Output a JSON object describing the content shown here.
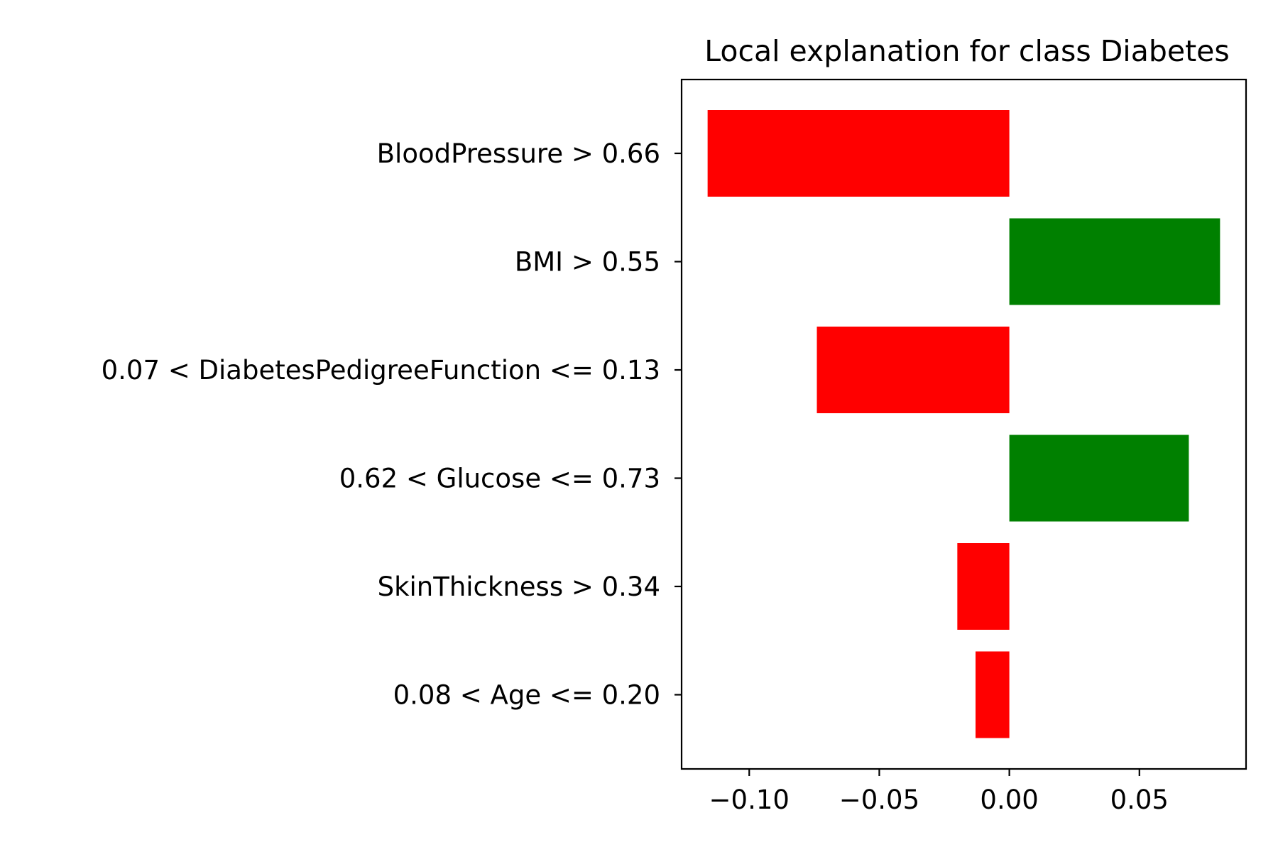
{
  "chart_data": {
    "type": "bar",
    "orientation": "horizontal",
    "title": "Local explanation for class Diabetes",
    "xlabel": "",
    "ylabel": "",
    "categories": [
      "BloodPressure > 0.66",
      "BMI > 0.55",
      "0.07 < DiabetesPedigreeFunction <= 0.13",
      "0.62 < Glucose <= 0.73",
      "SkinThickness > 0.34",
      "0.08 < Age <= 0.20"
    ],
    "values": [
      -0.116,
      0.081,
      -0.074,
      0.069,
      -0.02,
      -0.013
    ],
    "xlim": [
      -0.126,
      0.091
    ],
    "xticks": [
      -0.1,
      -0.05,
      0.0,
      0.05
    ],
    "xtick_labels": [
      "−0.10",
      "−0.05",
      "0.00",
      "0.05"
    ],
    "grid": false,
    "legend": false,
    "colors": {
      "positive": "#008000",
      "negative": "#ff0000",
      "axis": "#000000"
    }
  }
}
